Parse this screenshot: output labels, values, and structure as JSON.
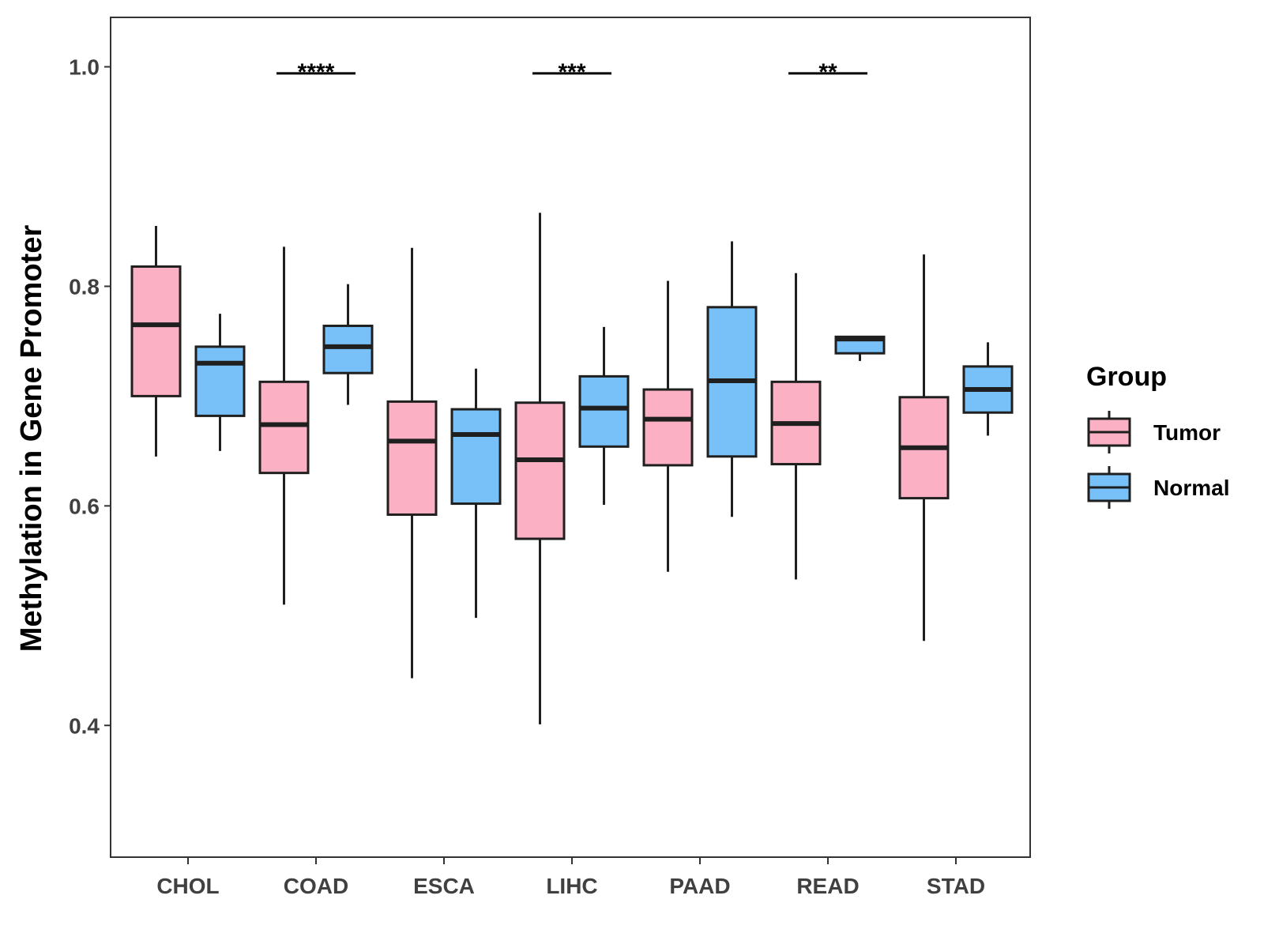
{
  "chart_data": {
    "type": "boxplot",
    "title": "",
    "xlabel": "",
    "ylabel": "Methylation in Gene Promoter",
    "ylim": [
      0.28,
      1.045
    ],
    "yticks": [
      0.4,
      0.6,
      0.8,
      1.0
    ],
    "ytick_labels": [
      "0.4",
      "0.6",
      "0.8",
      "1.0"
    ],
    "categories": [
      "CHOL",
      "COAD",
      "ESCA",
      "LIHC",
      "PAAD",
      "READ",
      "STAD"
    ],
    "legend": {
      "title": "Group",
      "position": "right",
      "entries": [
        {
          "name": "Tumor",
          "color": "#FBB1C3"
        },
        {
          "name": "Normal",
          "color": "#77C0F8"
        }
      ]
    },
    "series": [
      {
        "name": "Tumor",
        "color": "#FBB1C3",
        "boxes": [
          {
            "category": "CHOL",
            "whisker_low": 0.645,
            "q1": 0.7,
            "median": 0.765,
            "q3": 0.818,
            "whisker_high": 0.855
          },
          {
            "category": "COAD",
            "whisker_low": 0.51,
            "q1": 0.63,
            "median": 0.674,
            "q3": 0.713,
            "whisker_high": 0.836
          },
          {
            "category": "ESCA",
            "whisker_low": 0.443,
            "q1": 0.592,
            "median": 0.659,
            "q3": 0.695,
            "whisker_high": 0.835
          },
          {
            "category": "LIHC",
            "whisker_low": 0.401,
            "q1": 0.57,
            "median": 0.642,
            "q3": 0.694,
            "whisker_high": 0.867
          },
          {
            "category": "PAAD",
            "whisker_low": 0.54,
            "q1": 0.637,
            "median": 0.679,
            "q3": 0.706,
            "whisker_high": 0.805
          },
          {
            "category": "READ",
            "whisker_low": 0.533,
            "q1": 0.638,
            "median": 0.675,
            "q3": 0.713,
            "whisker_high": 0.812
          },
          {
            "category": "STAD",
            "whisker_low": 0.477,
            "q1": 0.607,
            "median": 0.653,
            "q3": 0.699,
            "whisker_high": 0.829
          }
        ]
      },
      {
        "name": "Normal",
        "color": "#77C0F8",
        "boxes": [
          {
            "category": "CHOL",
            "whisker_low": 0.65,
            "q1": 0.682,
            "median": 0.73,
            "q3": 0.745,
            "whisker_high": 0.775
          },
          {
            "category": "COAD",
            "whisker_low": 0.692,
            "q1": 0.721,
            "median": 0.745,
            "q3": 0.764,
            "whisker_high": 0.802
          },
          {
            "category": "ESCA",
            "whisker_low": 0.498,
            "q1": 0.602,
            "median": 0.665,
            "q3": 0.688,
            "whisker_high": 0.725
          },
          {
            "category": "LIHC",
            "whisker_low": 0.601,
            "q1": 0.654,
            "median": 0.689,
            "q3": 0.718,
            "whisker_high": 0.763
          },
          {
            "category": "PAAD",
            "whisker_low": 0.59,
            "q1": 0.645,
            "median": 0.714,
            "q3": 0.781,
            "whisker_high": 0.841
          },
          {
            "category": "READ",
            "whisker_low": 0.732,
            "q1": 0.739,
            "median": 0.752,
            "q3": 0.754,
            "whisker_high": 0.755
          },
          {
            "category": "STAD",
            "whisker_low": 0.664,
            "q1": 0.685,
            "median": 0.706,
            "q3": 0.727,
            "whisker_high": 0.749
          }
        ]
      }
    ],
    "annotations": [
      {
        "category": "COAD",
        "label": "****",
        "y": 0.994
      },
      {
        "category": "LIHC",
        "label": "***",
        "y": 0.994
      },
      {
        "category": "READ",
        "label": "**",
        "y": 0.994
      }
    ],
    "grid": false
  }
}
